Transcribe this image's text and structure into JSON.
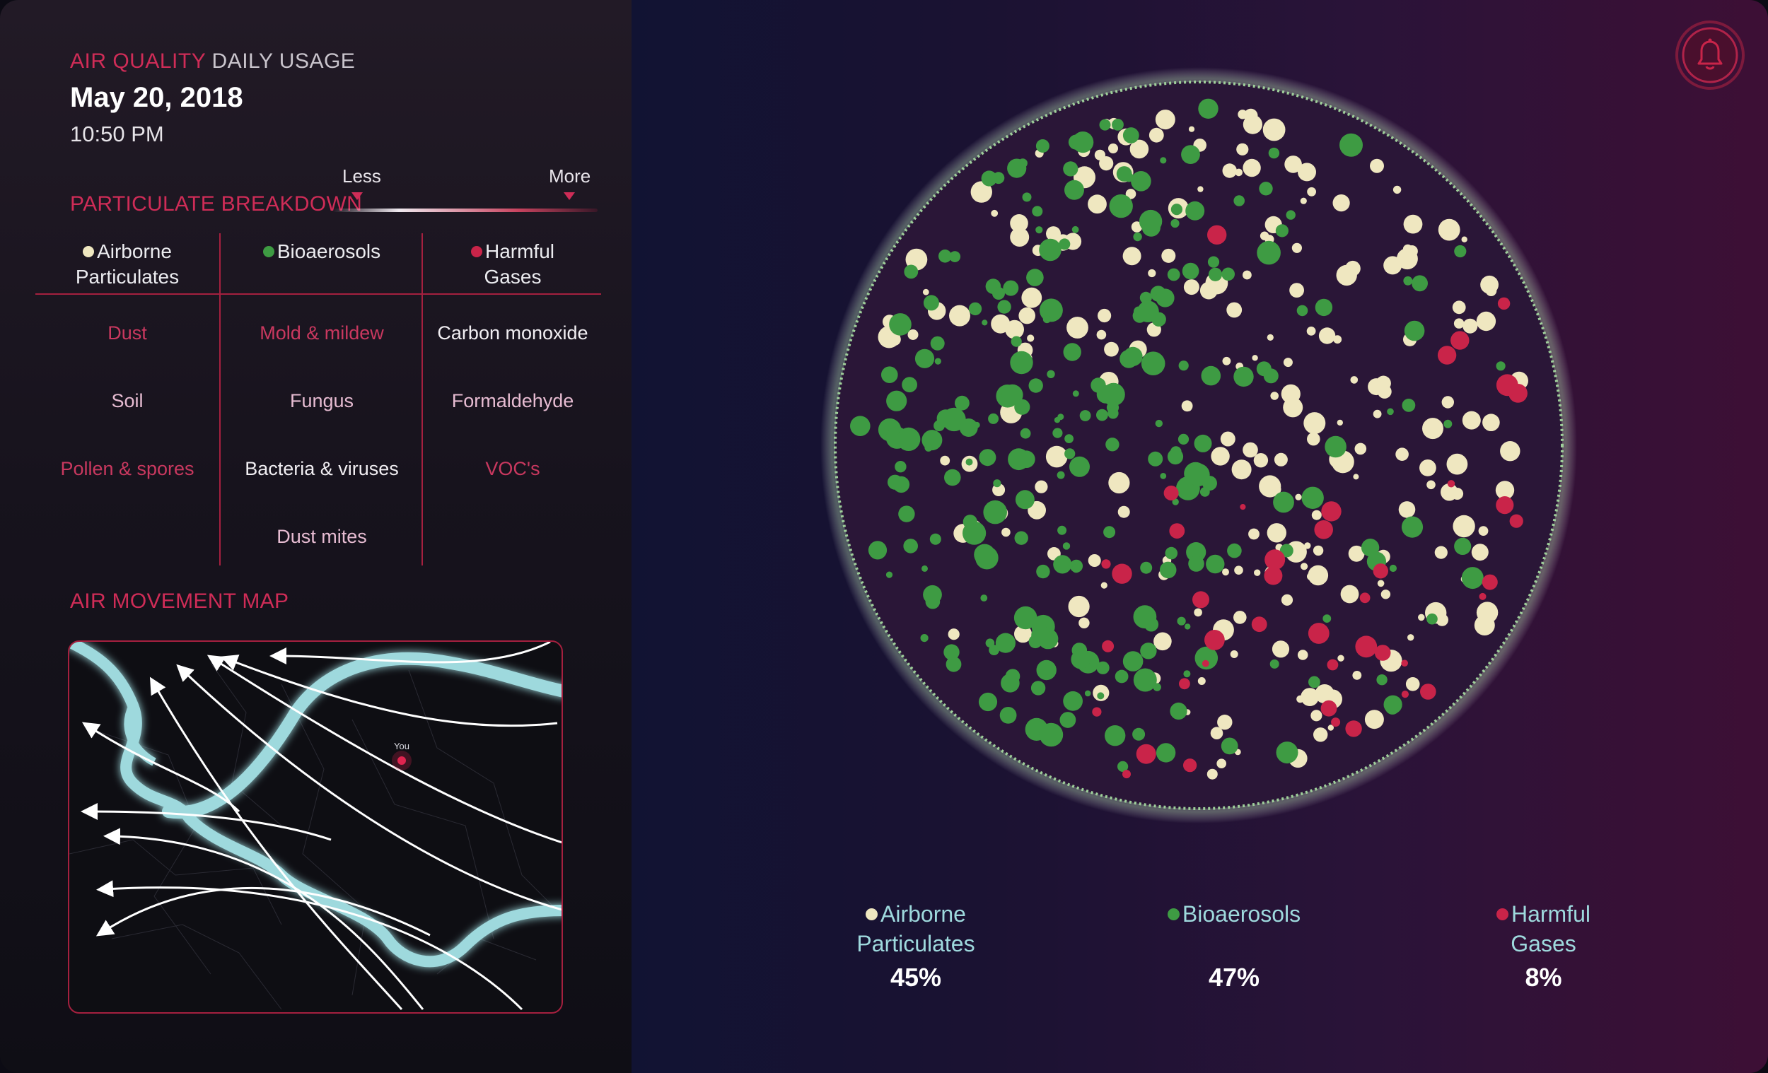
{
  "header": {
    "title_highlight": "AIR QUALITY",
    "title_rest": "DAILY USAGE",
    "date": "May 20, 2018",
    "time": "10:50 PM"
  },
  "breakdown": {
    "title": "PARTICULATE BREAKDOWN",
    "scale": {
      "less": "Less",
      "more": "More"
    },
    "columns": [
      {
        "line1": "Airborne",
        "line2": "Particulates",
        "dot_color": "#efe7c0"
      },
      {
        "line1": "Bioaerosols",
        "line2": "",
        "dot_color": "#3e9b43"
      },
      {
        "line1": "Harmful",
        "line2": "Gases",
        "dot_color": "#c92449"
      }
    ],
    "rows": {
      "airborne": [
        "Dust",
        "Soil",
        "Pollen & spores"
      ],
      "bioaerosols": [
        "Mold & mildew",
        "Fungus",
        "Bacteria & viruses",
        "Dust mites"
      ],
      "harmful": [
        "Carbon monoxide",
        "Formaldehyde",
        "VOC's"
      ]
    }
  },
  "air_map": {
    "title": "AIR MOVEMENT MAP",
    "you_label": "You"
  },
  "colors": {
    "accent": "#cf2c57",
    "airborne": "#efe7c0",
    "bioaerosols": "#3e9b43",
    "harmful": "#c92449",
    "river": "#9ed9dd"
  },
  "icons": {
    "alert": "bell-icon"
  },
  "chart_data": {
    "type": "bubble",
    "categories": [
      "Airborne Particulates",
      "Bioaerosols",
      "Harmful Gases"
    ],
    "values": [
      45,
      47,
      8
    ],
    "labels": [
      "45%",
      "47%",
      "8%"
    ]
  }
}
